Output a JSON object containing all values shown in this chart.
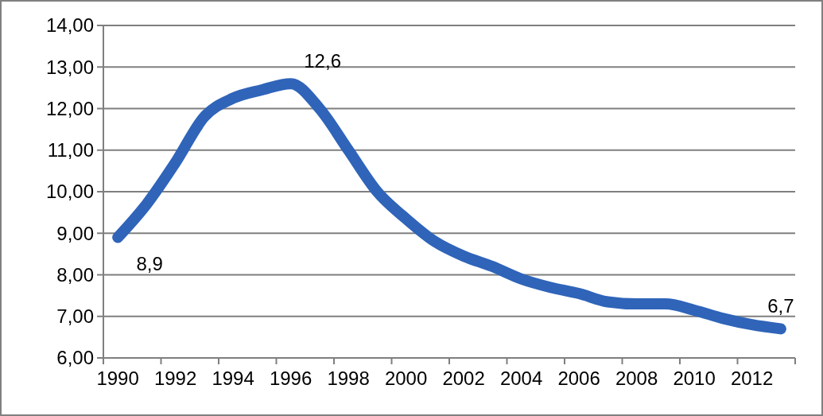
{
  "chart_data": {
    "type": "line",
    "categories": [
      "1990",
      null,
      "1992",
      null,
      "1994",
      null,
      "1996",
      null,
      "1998",
      null,
      "2000",
      null,
      "2002",
      null,
      "2004",
      null,
      "2006",
      null,
      "2008",
      null,
      "2010",
      null,
      "2012",
      null
    ],
    "series": [
      {
        "color": "#2f64b9",
        "values": [
          8.9,
          9.7,
          10.7,
          11.8,
          12.25,
          12.45,
          12.6,
          12.0,
          11.0,
          10.0,
          9.35,
          8.8,
          8.45,
          8.2,
          7.9,
          7.7,
          7.55,
          7.35,
          7.3,
          7.3,
          7.15,
          6.95,
          6.8,
          6.7
        ],
        "value_labels": [
          "8,9",
          null,
          null,
          null,
          null,
          null,
          "12,6",
          null,
          null,
          null,
          null,
          null,
          null,
          null,
          null,
          null,
          null,
          null,
          null,
          null,
          null,
          null,
          null,
          "6,7"
        ]
      }
    ],
    "ylim": [
      6,
      14
    ],
    "yticks": [
      {
        "value": 6,
        "label": "6,00"
      },
      {
        "value": 7,
        "label": "7,00"
      },
      {
        "value": 8,
        "label": "8,00"
      },
      {
        "value": 9,
        "label": "9,00"
      },
      {
        "value": 10,
        "label": "10,00"
      },
      {
        "value": 11,
        "label": "11,00"
      },
      {
        "value": 12,
        "label": "12,00"
      },
      {
        "value": 13,
        "label": "13,00"
      },
      {
        "value": 14,
        "label": "14,00"
      }
    ],
    "grid": "y",
    "marker": "none",
    "line_style": "solid"
  }
}
